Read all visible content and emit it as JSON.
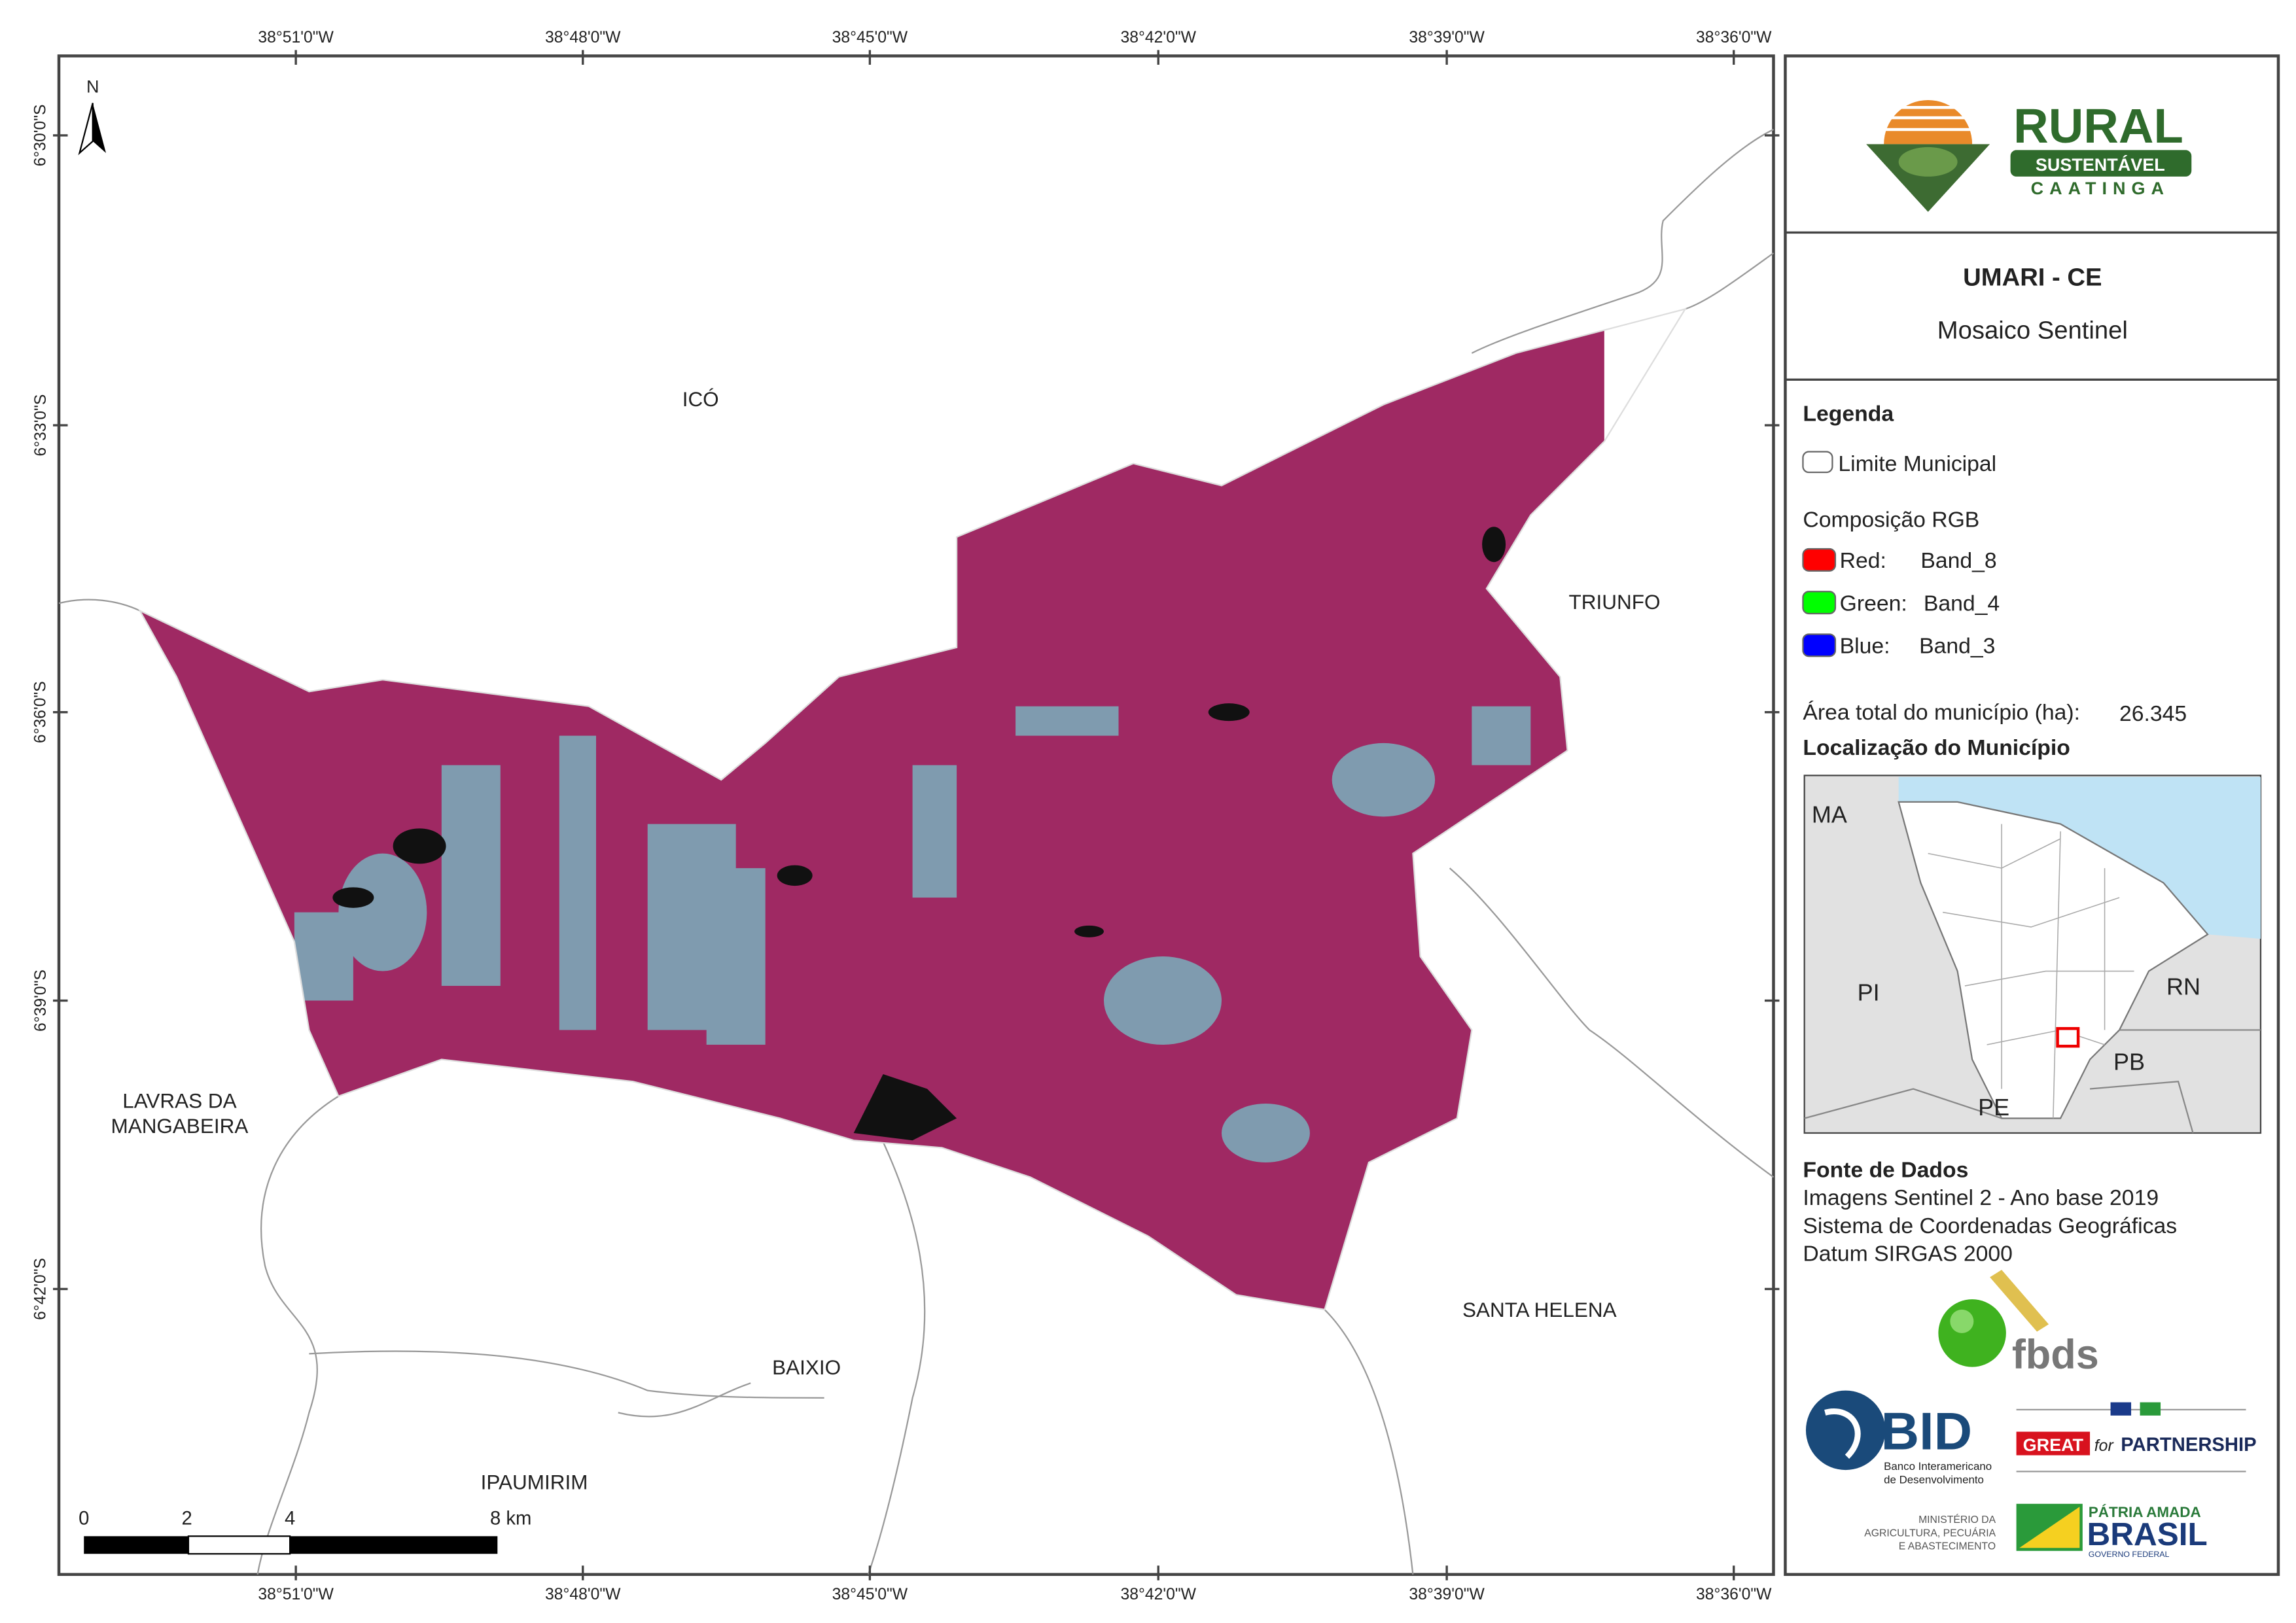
{
  "map": {
    "lon_labels": [
      "38°51'0\"W",
      "38°48'0\"W",
      "38°45'0\"W",
      "38°42'0\"W",
      "38°39'0\"W",
      "38°36'0\"W"
    ],
    "lat_labels": [
      "6°30'0\"S",
      "6°33'0\"S",
      "6°36'0\"S",
      "6°39'0\"S",
      "6°42'0\"S"
    ],
    "places": [
      "ICÓ",
      "TRIUNFO",
      "LAVRAS DA",
      "MANGABEIRA",
      "BAIXIO",
      "IPAUMIRIM",
      "SANTA HELENA"
    ],
    "north": "N",
    "scale_labels": [
      "0",
      "2",
      "4",
      "8 km"
    ]
  },
  "panel": {
    "title": "UMARI - CE",
    "subtitle": "Mosaico Sentinel",
    "legend": {
      "heading": "Legenda",
      "boundary": "Limite Municipal",
      "rgb_heading": "Composição RGB",
      "bands": [
        {
          "label": "Red:",
          "band": "Band_8"
        },
        {
          "label": "Green:",
          "band": "Band_4"
        },
        {
          "label": "Blue:",
          "band": "Band_3"
        }
      ]
    },
    "area": {
      "label": "Área total do município (ha):",
      "value": "26.345"
    },
    "location": {
      "heading": "Localização do Município",
      "states": [
        "MA",
        "PI",
        "RN",
        "PB",
        "PE"
      ]
    },
    "sources": {
      "heading": "Fonte de Dados",
      "lines": [
        "Imagens Sentinel 2 - Ano base 2019",
        "Sistema de Coordenadas Geográficas",
        "Datum SIRGAS 2000"
      ]
    }
  },
  "logos": {
    "rural": [
      "RURAL",
      "SUSTENTÁVEL",
      "CAATINGA"
    ],
    "fbds": "fbds",
    "bid": [
      "BID",
      "Banco Interamericano",
      "de Desenvolvimento"
    ],
    "great": [
      "GREAT",
      "for",
      "PARTNERSHIP"
    ],
    "ministry": [
      "MINISTÉRIO DA",
      "AGRICULTURA, PECUÁRIA",
      "E ABASTECIMENTO"
    ],
    "brasil": [
      "PÁTRIA AMADA",
      "BRASIL",
      "GOVERNO FEDERAL"
    ]
  }
}
